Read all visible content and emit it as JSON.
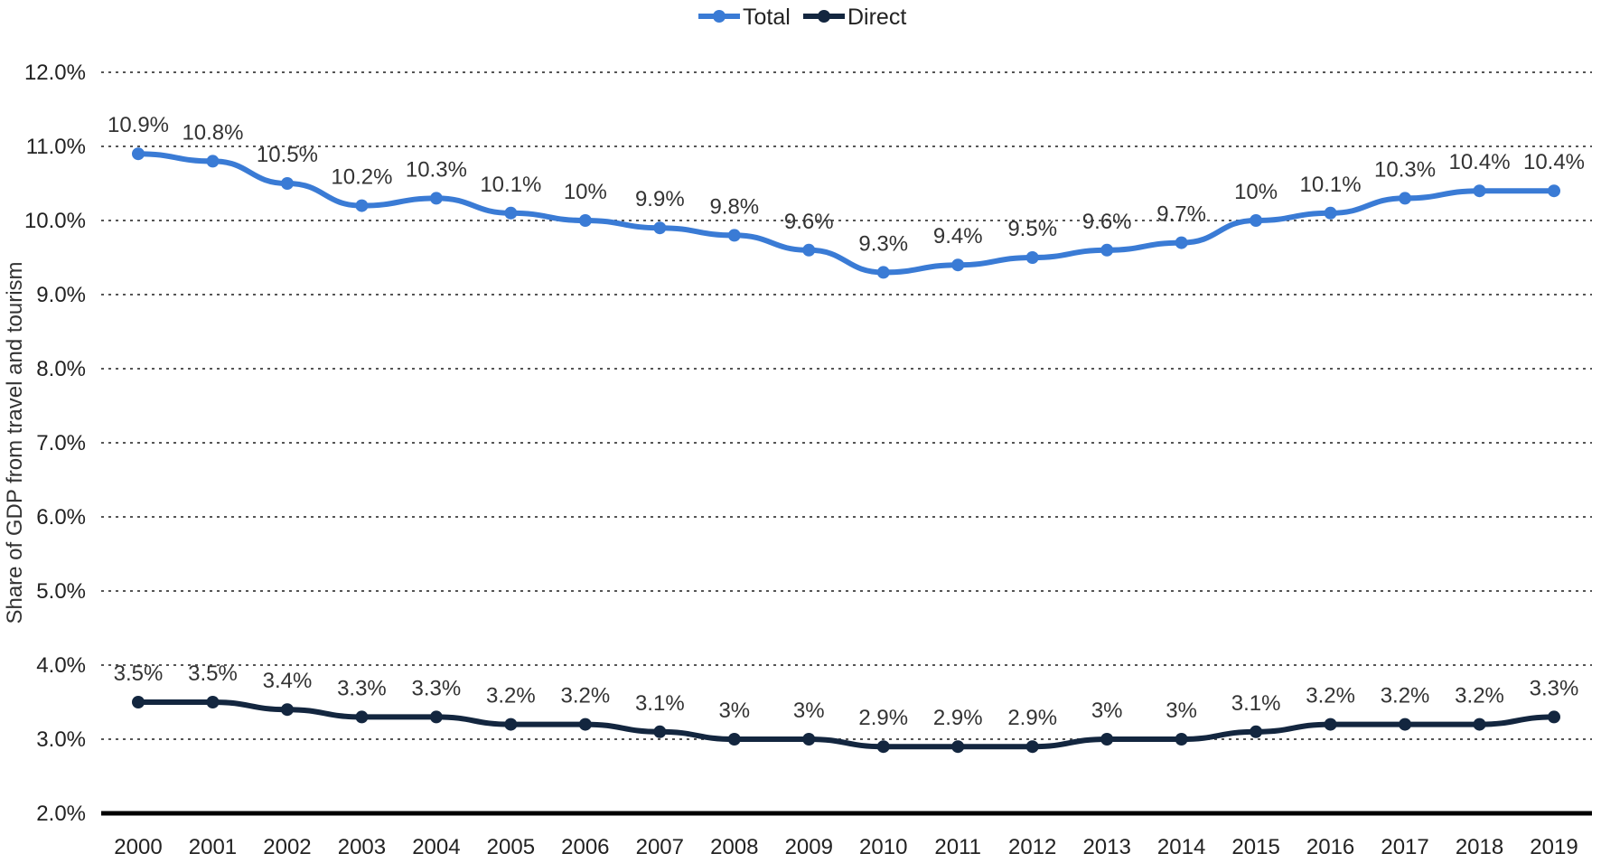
{
  "chart_data": {
    "type": "line",
    "title": "",
    "xlabel": "",
    "ylabel": "Share of GDP from travel and tourism",
    "ylim": [
      2.0,
      12.0
    ],
    "ytick_step": 1.0,
    "yticks": [
      "2.0%",
      "3.0%",
      "4.0%",
      "5.0%",
      "6.0%",
      "7.0%",
      "8.0%",
      "9.0%",
      "10.0%",
      "11.0%",
      "12.0%"
    ],
    "grid": "dotted-horizontal",
    "legend": "top-center",
    "categories": [
      "2000",
      "2001",
      "2002",
      "2003",
      "2004",
      "2005",
      "2006",
      "2007",
      "2008",
      "2009",
      "2010",
      "2011",
      "2012",
      "2013",
      "2014",
      "2015",
      "2016",
      "2017",
      "2018",
      "2019"
    ],
    "series": [
      {
        "name": "Total",
        "color": "#3a7bd5",
        "values": [
          10.9,
          10.8,
          10.5,
          10.2,
          10.3,
          10.1,
          10.0,
          9.9,
          9.8,
          9.6,
          9.3,
          9.4,
          9.5,
          9.6,
          9.7,
          10.0,
          10.1,
          10.3,
          10.4,
          10.4
        ],
        "labels": [
          "10.9%",
          "10.8%",
          "10.5%",
          "10.2%",
          "10.3%",
          "10.1%",
          "10%",
          "9.9%",
          "9.8%",
          "9.6%",
          "9.3%",
          "9.4%",
          "9.5%",
          "9.6%",
          "9.7%",
          "10%",
          "10.1%",
          "10.3%",
          "10.4%",
          "10.4%"
        ]
      },
      {
        "name": "Direct",
        "color": "#13263f",
        "values": [
          3.5,
          3.5,
          3.4,
          3.3,
          3.3,
          3.2,
          3.2,
          3.1,
          3.0,
          3.0,
          2.9,
          2.9,
          2.9,
          3.0,
          3.0,
          3.1,
          3.2,
          3.2,
          3.2,
          3.3
        ],
        "labels": [
          "3.5%",
          "3.5%",
          "3.4%",
          "3.3%",
          "3.3%",
          "3.2%",
          "3.2%",
          "3.1%",
          "3%",
          "3%",
          "2.9%",
          "2.9%",
          "2.9%",
          "3%",
          "3%",
          "3.1%",
          "3.2%",
          "3.2%",
          "3.2%",
          "3.3%"
        ]
      }
    ]
  }
}
